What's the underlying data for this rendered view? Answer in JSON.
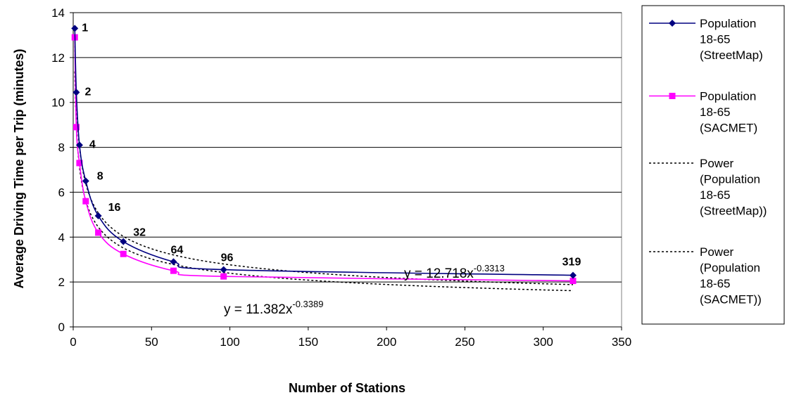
{
  "chart_data": {
    "type": "line",
    "title": "",
    "xlabel": "Number of Stations",
    "ylabel": "Average Driving Time per Trip (minutes)",
    "xlim": [
      0,
      350
    ],
    "ylim": [
      0,
      14
    ],
    "x_ticks": [
      "0",
      "50",
      "100",
      "150",
      "200",
      "250",
      "300",
      "350"
    ],
    "y_ticks": [
      "0",
      "2",
      "4",
      "6",
      "8",
      "10",
      "12",
      "14"
    ],
    "grid": "horizontal",
    "legend_position": "right",
    "series": [
      {
        "name": "Population 18-65 (StreetMap)",
        "legend_lines": [
          "Population",
          "18-65",
          "(StreetMap)"
        ],
        "color": "#000080",
        "marker": "diamond",
        "line_style": "solid",
        "x": [
          1,
          2,
          4,
          8,
          16,
          32,
          64,
          96,
          319
        ],
        "y": [
          13.3,
          10.45,
          8.1,
          6.5,
          4.95,
          3.8,
          2.9,
          2.55,
          2.3
        ]
      },
      {
        "name": "Population 18-65 (SACMET)",
        "legend_lines": [
          "Population",
          "18-65",
          "(SACMET)"
        ],
        "color": "#ff00ff",
        "marker": "square",
        "line_style": "solid",
        "x": [
          1,
          2,
          4,
          8,
          16,
          32,
          64,
          96,
          319
        ],
        "y": [
          12.9,
          8.9,
          7.3,
          5.6,
          4.2,
          3.25,
          2.5,
          2.25,
          2.05
        ]
      },
      {
        "name": "Power (Population 18-65 (StreetMap))",
        "legend_lines": [
          "Power",
          "(Population",
          "18-65",
          "(StreetMap))"
        ],
        "color": "#000000",
        "line_style": "dotted",
        "fit": {
          "a": 12.718,
          "b": -0.3313
        }
      },
      {
        "name": "Power (Population 18-65 (SACMET))",
        "legend_lines": [
          "Power",
          "(Population",
          "18-65",
          "(SACMET))"
        ],
        "color": "#000000",
        "line_style": "dotted",
        "fit": {
          "a": 11.382,
          "b": -0.3389
        }
      }
    ],
    "point_labels": [
      "1",
      "2",
      "4",
      "8",
      "16",
      "32",
      "64",
      "96",
      "319"
    ],
    "equations": [
      {
        "base": "y = 12.718x",
        "exponent": "-0.3313"
      },
      {
        "base": "y = 11.382x",
        "exponent": "-0.3389"
      }
    ]
  }
}
